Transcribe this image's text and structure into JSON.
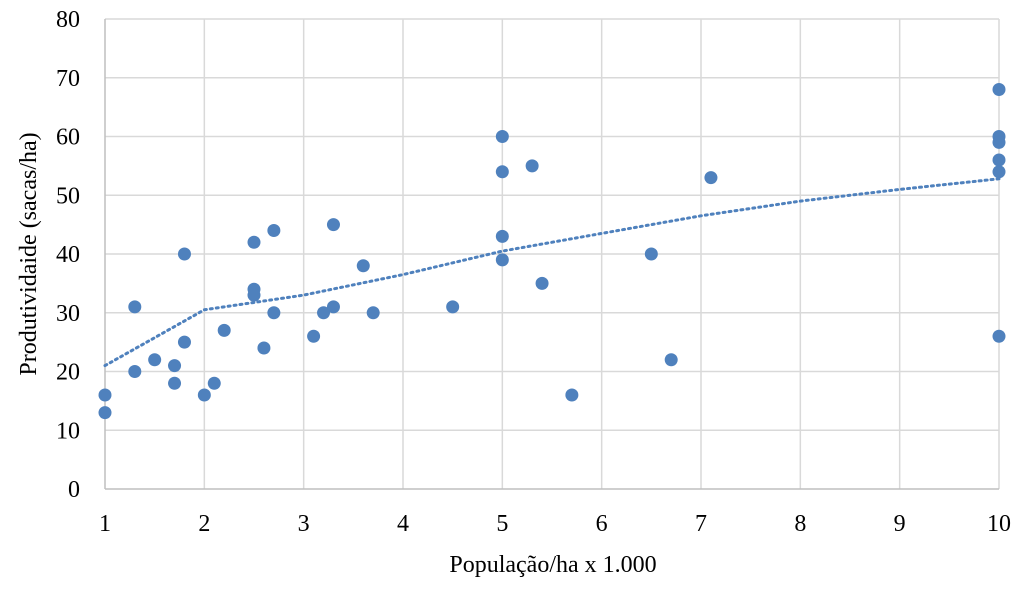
{
  "chart_data": {
    "type": "scatter",
    "xlabel": "População/ha x 1.000",
    "ylabel": "Produtividaide (sacas/ha)",
    "xlim": [
      1,
      10
    ],
    "ylim": [
      0,
      80
    ],
    "x_ticks": [
      "1",
      "2",
      "3",
      "4",
      "5",
      "6",
      "7",
      "8",
      "9",
      "10"
    ],
    "y_ticks": [
      "0",
      "10",
      "20",
      "30",
      "40",
      "50",
      "60",
      "70",
      "80"
    ],
    "grid": true,
    "legend": "none",
    "marker_color": "#4f81bd",
    "trendline": {
      "type": "logarithmic",
      "style": "dotted",
      "color": "#4f81bd",
      "points": [
        [
          1,
          21
        ],
        [
          2,
          30.5
        ],
        [
          3,
          33
        ],
        [
          4,
          36.5
        ],
        [
          5,
          40.5
        ],
        [
          6,
          43.5
        ],
        [
          7,
          46.5
        ],
        [
          8,
          49
        ],
        [
          9,
          51
        ],
        [
          10,
          52.8
        ]
      ]
    },
    "points": [
      [
        1.0,
        16
      ],
      [
        1.0,
        13
      ],
      [
        1.3,
        31
      ],
      [
        1.3,
        20
      ],
      [
        1.5,
        22
      ],
      [
        1.7,
        21
      ],
      [
        1.7,
        18
      ],
      [
        1.8,
        40
      ],
      [
        1.8,
        25
      ],
      [
        2.0,
        16
      ],
      [
        2.1,
        18
      ],
      [
        2.2,
        27
      ],
      [
        2.5,
        42
      ],
      [
        2.5,
        34
      ],
      [
        2.5,
        33
      ],
      [
        2.6,
        24
      ],
      [
        2.7,
        44
      ],
      [
        2.7,
        30
      ],
      [
        3.1,
        26
      ],
      [
        3.2,
        30
      ],
      [
        3.3,
        45
      ],
      [
        3.3,
        31
      ],
      [
        3.6,
        38
      ],
      [
        3.7,
        30
      ],
      [
        4.5,
        31
      ],
      [
        5.0,
        60
      ],
      [
        5.0,
        54
      ],
      [
        5.0,
        43
      ],
      [
        5.0,
        39
      ],
      [
        5.3,
        55
      ],
      [
        5.4,
        35
      ],
      [
        5.7,
        16
      ],
      [
        6.5,
        40
      ],
      [
        6.7,
        22
      ],
      [
        7.1,
        53
      ],
      [
        10.0,
        68
      ],
      [
        10.0,
        60
      ],
      [
        10.0,
        59
      ],
      [
        10.0,
        56
      ],
      [
        10.0,
        54
      ],
      [
        10.0,
        26
      ]
    ]
  }
}
